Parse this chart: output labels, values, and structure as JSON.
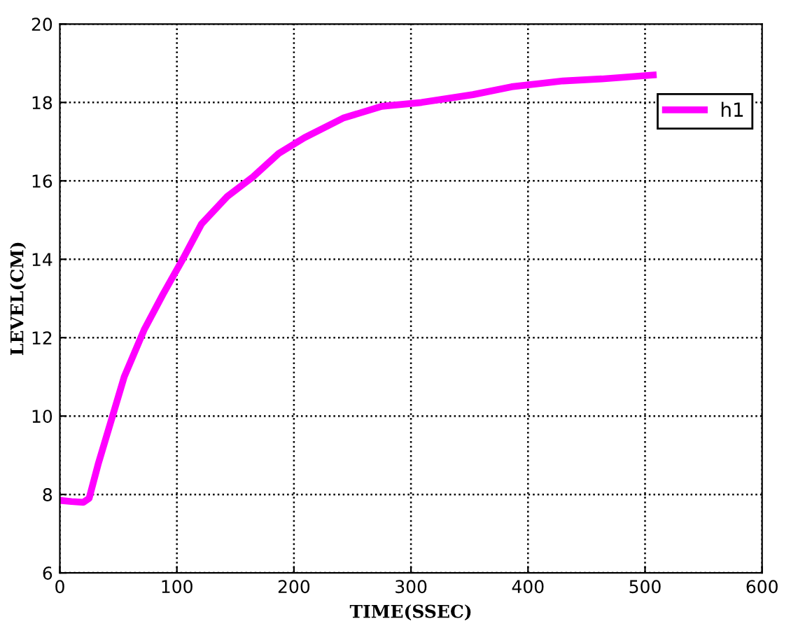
{
  "chart_data": {
    "type": "line",
    "xlabel": "TIME(SSEC)",
    "ylabel": "LEVEL(CM)",
    "series": [
      {
        "name": "h1",
        "color": "#ff00ff",
        "x": [
          0,
          10,
          20,
          25,
          33,
          44,
          55,
          72,
          88,
          105,
          121,
          143,
          165,
          187,
          209,
          242,
          275,
          309,
          353,
          386,
          430,
          463,
          507
        ],
        "values": [
          7.85,
          7.82,
          7.8,
          7.9,
          8.8,
          9.9,
          11.0,
          12.2,
          13.1,
          14.0,
          14.9,
          15.6,
          16.1,
          16.7,
          17.1,
          17.6,
          17.9,
          18.0,
          18.2,
          18.4,
          18.55,
          18.6,
          18.7
        ]
      }
    ],
    "xlim": [
      0,
      600
    ],
    "ylim": [
      6,
      20
    ],
    "xticks": [
      0,
      100,
      200,
      300,
      400,
      500,
      600
    ],
    "yticks": [
      6,
      8,
      10,
      12,
      14,
      16,
      18,
      20
    ],
    "grid": true,
    "legend": "top right",
    "line_style": "solid",
    "marker": "none"
  }
}
